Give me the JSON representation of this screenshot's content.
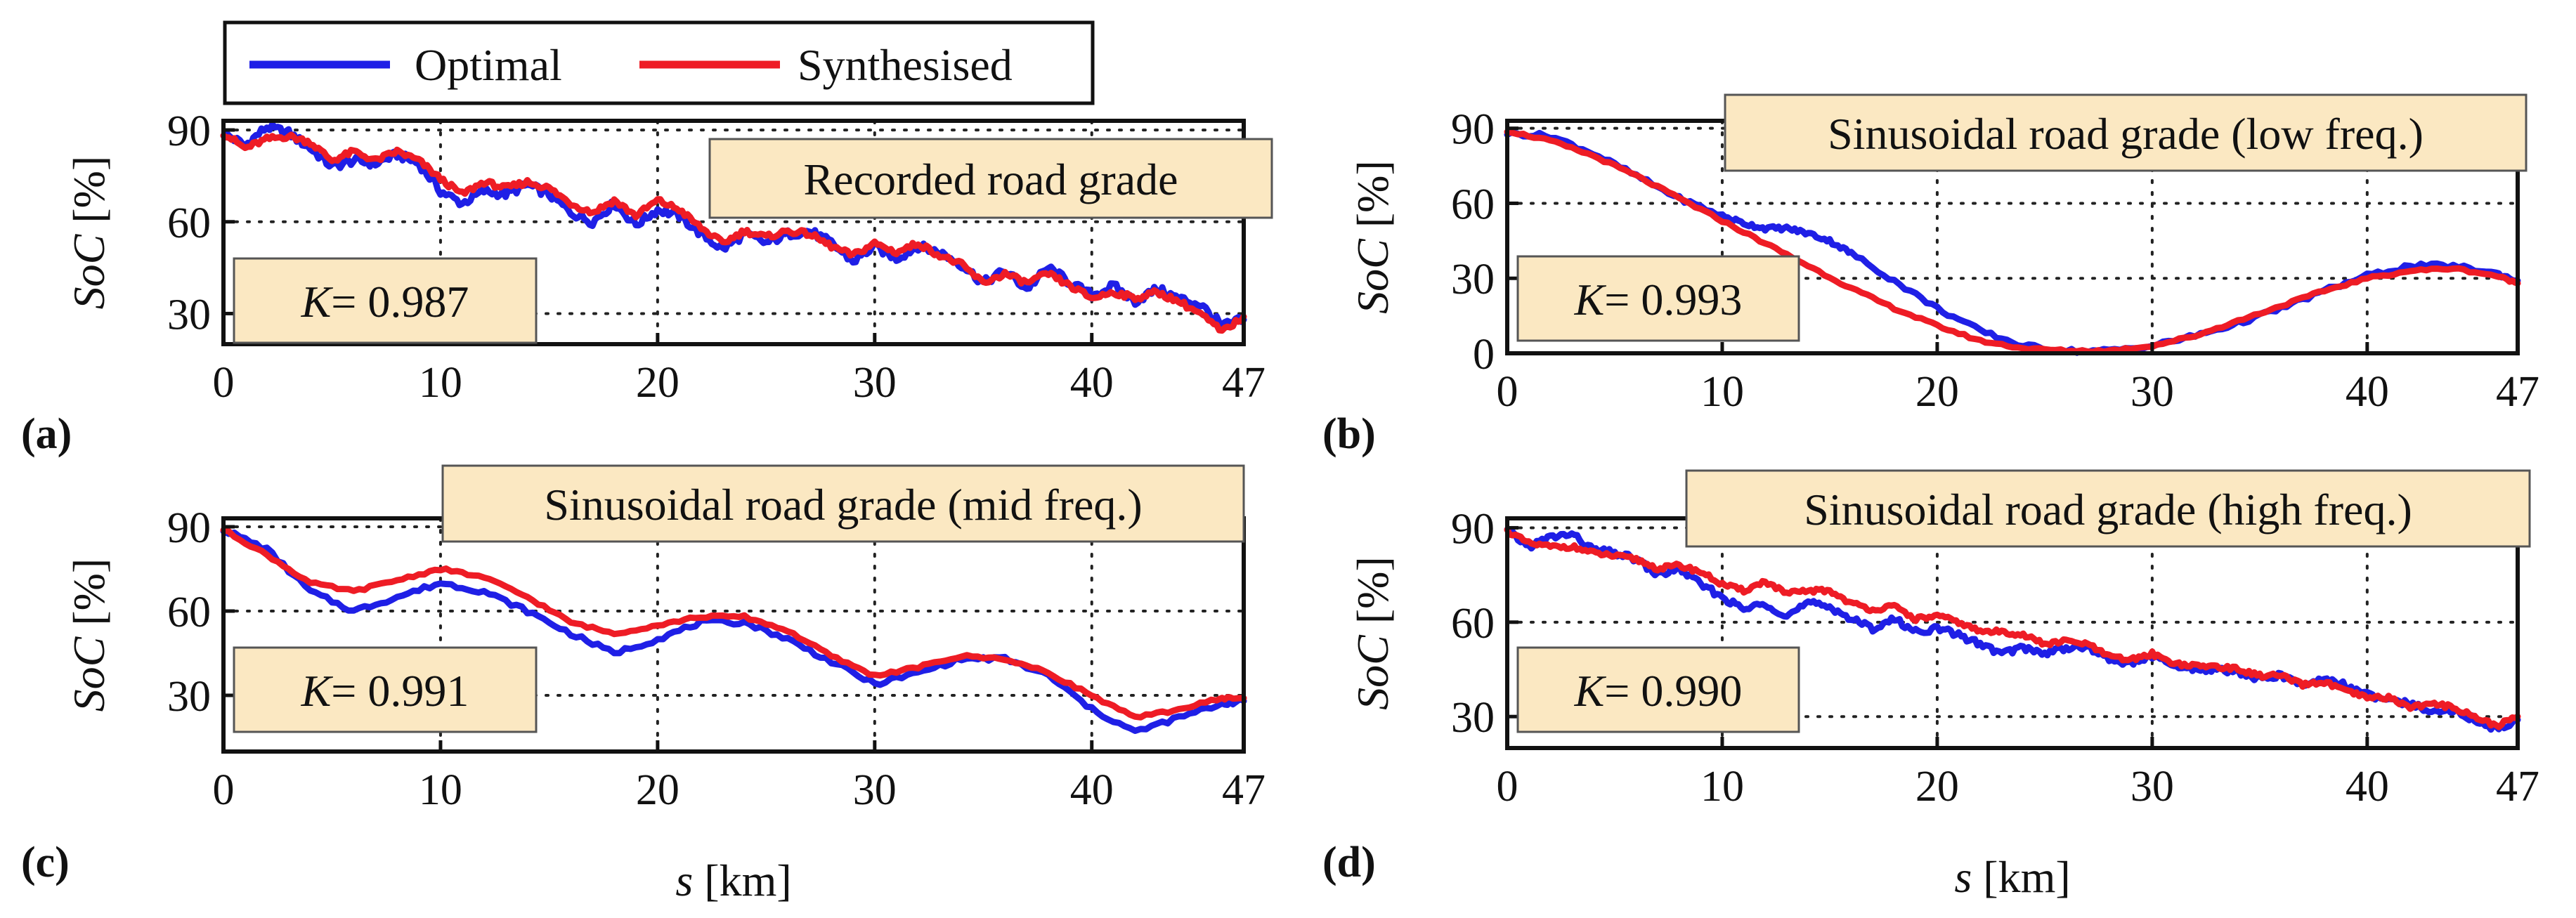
{
  "legend": {
    "entries": [
      {
        "name": "Optimal",
        "color": "#1f1fe6"
      },
      {
        "name": "Synthesised",
        "color": "#ee1c25"
      }
    ],
    "placement": "top-left"
  },
  "colors": {
    "optimal": "#1f1fe6",
    "synthesised": "#ee1c25",
    "annotation_fill": "#fbe8c2",
    "axis": "#111111",
    "grid": "#222222"
  },
  "chart_data": [
    {
      "type": "line",
      "panel_label": "(a)",
      "title_box": "Recorded road grade",
      "k_label": "K",
      "k_value": "= 0.987",
      "ylabel_italic": "SoC",
      "ylabel_unit": "[%]",
      "xlabel_italic": "",
      "xlabel_unit": "",
      "xlim": [
        0,
        47
      ],
      "ylim": [
        20,
        93
      ],
      "xticks": [
        0,
        10,
        20,
        30,
        40,
        47
      ],
      "xtick_labels": [
        "0",
        "10",
        "20",
        "30",
        "40",
        "47"
      ],
      "yticks": [
        30,
        60,
        90
      ],
      "ytick_labels": [
        "30",
        "60",
        "90"
      ],
      "grid": true,
      "series": [
        {
          "name": "Optimal",
          "x": [
            0,
            1,
            2,
            3,
            4,
            5,
            6,
            7,
            8,
            9,
            10,
            11,
            12,
            13,
            14,
            15,
            16,
            17,
            18,
            19,
            20,
            21,
            22,
            23,
            24,
            25,
            26,
            27,
            28,
            29,
            30,
            31,
            32,
            33,
            34,
            35,
            36,
            37,
            38,
            39,
            40,
            41,
            42,
            43,
            44,
            45,
            46,
            47
          ],
          "y": [
            89,
            85,
            91,
            89,
            84,
            78,
            80,
            79,
            82,
            79,
            70,
            66,
            70,
            69,
            72,
            69,
            63,
            60,
            66,
            59,
            64,
            62,
            56,
            51,
            56,
            53,
            56,
            57,
            53,
            47,
            52,
            48,
            52,
            50,
            46,
            40,
            44,
            38,
            45,
            40,
            36,
            39,
            34,
            38,
            35,
            33,
            26,
            28
          ],
          "noise": 1.4
        },
        {
          "name": "Synthesised",
          "x": [
            0,
            1,
            2,
            3,
            4,
            5,
            6,
            7,
            8,
            9,
            10,
            11,
            12,
            13,
            14,
            15,
            16,
            17,
            18,
            19,
            20,
            21,
            22,
            23,
            24,
            25,
            26,
            27,
            28,
            29,
            30,
            31,
            32,
            33,
            34,
            35,
            36,
            37,
            38,
            39,
            40,
            41,
            42,
            43,
            44,
            45,
            46,
            47
          ],
          "y": [
            89,
            84,
            87,
            88,
            86,
            80,
            83,
            80,
            83,
            80,
            74,
            69,
            73,
            71,
            73,
            71,
            66,
            63,
            67,
            62,
            67,
            64,
            58,
            53,
            57,
            55,
            57,
            56,
            52,
            49,
            53,
            50,
            53,
            49,
            46,
            40,
            43,
            40,
            43,
            39,
            35,
            37,
            35,
            37,
            34,
            30,
            24,
            29
          ],
          "noise": 0.9
        }
      ]
    },
    {
      "type": "line",
      "panel_label": "(b)",
      "title_box": "Sinusoidal road grade (low freq.)",
      "k_label": "K",
      "k_value": "= 0.993",
      "ylabel_italic": "SoC",
      "ylabel_unit": "[%]",
      "xlabel_italic": "",
      "xlabel_unit": "",
      "xlim": [
        0,
        47
      ],
      "ylim": [
        0,
        93
      ],
      "xticks": [
        0,
        10,
        20,
        30,
        40,
        47
      ],
      "xtick_labels": [
        "0",
        "10",
        "20",
        "30",
        "40",
        "47"
      ],
      "yticks": [
        0,
        30,
        60,
        90
      ],
      "ytick_labels": [
        "0",
        "30",
        "60",
        "90"
      ],
      "grid": true,
      "series": [
        {
          "name": "Optimal",
          "x": [
            0,
            2,
            4,
            6,
            8,
            10,
            11,
            12,
            13,
            14,
            15,
            16,
            18,
            20,
            22,
            24,
            26,
            28,
            30,
            32,
            34,
            36,
            38,
            40,
            42,
            44,
            46,
            47
          ],
          "y": [
            88,
            87,
            80,
            71,
            62,
            55,
            52,
            50,
            50,
            48,
            45,
            40,
            29,
            18,
            9,
            3,
            1,
            1,
            3,
            7,
            12,
            18,
            25,
            31,
            35,
            35,
            32,
            29
          ],
          "noise": 0.9
        },
        {
          "name": "Synthesised",
          "x": [
            0,
            2,
            4,
            6,
            8,
            10,
            12,
            14,
            16,
            18,
            20,
            22,
            24,
            26,
            28,
            30,
            32,
            34,
            36,
            38,
            40,
            42,
            44,
            46,
            47
          ],
          "y": [
            89,
            85,
            79,
            71,
            62,
            53,
            44,
            35,
            26,
            18,
            11,
            5,
            2,
            1,
            1,
            3,
            7,
            13,
            19,
            25,
            30,
            33,
            34,
            31,
            28
          ],
          "noise": 0.5
        }
      ]
    },
    {
      "type": "line",
      "panel_label": "(c)",
      "title_box": "Sinusoidal road grade (mid freq.)",
      "k_label": "K",
      "k_value": "= 0.991",
      "ylabel_italic": "SoC",
      "ylabel_unit": "[%]",
      "xlabel_italic": "s",
      "xlabel_unit": "[km]",
      "xlim": [
        0,
        47
      ],
      "ylim": [
        10,
        93
      ],
      "xticks": [
        0,
        10,
        20,
        30,
        40,
        47
      ],
      "xtick_labels": [
        "0",
        "10",
        "20",
        "30",
        "40",
        "47"
      ],
      "yticks": [
        30,
        60,
        90
      ],
      "ytick_labels": [
        "30",
        "60",
        "90"
      ],
      "grid": true,
      "series": [
        {
          "name": "Optimal",
          "x": [
            0,
            2,
            4,
            6,
            8,
            10,
            12,
            14,
            16,
            18,
            20,
            22,
            24,
            26,
            28,
            30,
            32,
            34,
            36,
            38,
            40,
            42,
            44,
            46,
            47
          ],
          "y": [
            89,
            82,
            67,
            60,
            65,
            70,
            67,
            60,
            52,
            45,
            50,
            56,
            56,
            50,
            42,
            34,
            38,
            43,
            43,
            37,
            25,
            17,
            22,
            27,
            28
          ],
          "noise": 0.8
        },
        {
          "name": "Synthesised",
          "x": [
            0,
            2,
            4,
            6,
            8,
            10,
            12,
            14,
            16,
            18,
            20,
            22,
            24,
            26,
            28,
            30,
            32,
            34,
            36,
            38,
            40,
            42,
            44,
            46,
            47
          ],
          "y": [
            89,
            80,
            70,
            67,
            71,
            75,
            72,
            65,
            56,
            52,
            55,
            58,
            58,
            53,
            44,
            37,
            40,
            44,
            43,
            38,
            30,
            22,
            25,
            29,
            29
          ],
          "noise": 0.5
        }
      ]
    },
    {
      "type": "line",
      "panel_label": "(d)",
      "title_box": "Sinusoidal road grade (high freq.)",
      "k_label": "K",
      "k_value": "= 0.990",
      "ylabel_italic": "SoC",
      "ylabel_unit": "[%]",
      "xlabel_italic": "s",
      "xlabel_unit": "[km]",
      "xlim": [
        0,
        47
      ],
      "ylim": [
        20,
        93
      ],
      "xticks": [
        0,
        10,
        20,
        30,
        40,
        47
      ],
      "xtick_labels": [
        "0",
        "10",
        "20",
        "30",
        "40",
        "47"
      ],
      "yticks": [
        30,
        60,
        90
      ],
      "ytick_labels": [
        "30",
        "60",
        "90"
      ],
      "grid": true,
      "series": [
        {
          "name": "Optimal",
          "x": [
            0,
            1,
            2,
            3,
            4,
            5,
            6,
            7,
            8,
            9,
            10,
            11,
            12,
            13,
            14,
            15,
            16,
            17,
            18,
            19,
            20,
            21,
            22,
            23,
            24,
            25,
            26,
            27,
            28,
            29,
            30,
            31,
            32,
            33,
            34,
            35,
            36,
            37,
            38,
            39,
            40,
            41,
            42,
            43,
            44,
            45,
            46,
            47
          ],
          "y": [
            89,
            84,
            87,
            88,
            83,
            82,
            80,
            75,
            77,
            72,
            68,
            64,
            66,
            62,
            66,
            65,
            61,
            58,
            61,
            57,
            58,
            56,
            53,
            50,
            52,
            50,
            52,
            52,
            48,
            47,
            49,
            46,
            45,
            45,
            44,
            42,
            43,
            40,
            42,
            40,
            37,
            35,
            34,
            32,
            32,
            29,
            26,
            29
          ],
          "noise": 1.0
        },
        {
          "name": "Synthesised",
          "x": [
            0,
            1,
            2,
            3,
            4,
            5,
            6,
            7,
            8,
            9,
            10,
            11,
            12,
            13,
            14,
            15,
            16,
            17,
            18,
            19,
            20,
            21,
            22,
            23,
            24,
            25,
            26,
            27,
            28,
            29,
            30,
            31,
            32,
            33,
            34,
            35,
            36,
            37,
            38,
            39,
            40,
            41,
            42,
            43,
            44,
            45,
            46,
            47
          ],
          "y": [
            89,
            85,
            84,
            84,
            82,
            81,
            80,
            77,
            78,
            76,
            72,
            70,
            73,
            69,
            70,
            70,
            66,
            64,
            65,
            61,
            62,
            60,
            57,
            57,
            56,
            53,
            54,
            53,
            49,
            48,
            50,
            47,
            46,
            46,
            45,
            43,
            43,
            40,
            41,
            38,
            36,
            36,
            33,
            34,
            33,
            30,
            27,
            30
          ],
          "noise": 0.7
        }
      ]
    }
  ]
}
